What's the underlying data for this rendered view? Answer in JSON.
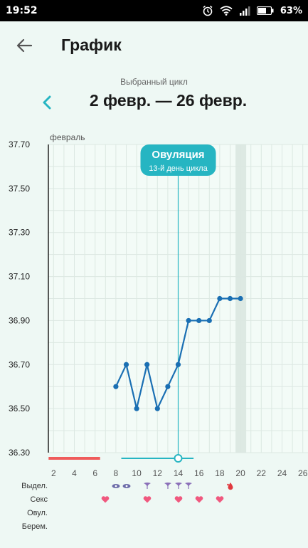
{
  "status_bar": {
    "time": "19:52",
    "battery": "63%"
  },
  "header": {
    "title": "График"
  },
  "cycle": {
    "caption": "Выбранный цикл",
    "range": "2 февр. — 26 февр."
  },
  "chart_data": {
    "type": "line",
    "month_label": "февраль",
    "y_ticks": [
      "37.70",
      "37.50",
      "37.30",
      "37.10",
      "36.90",
      "36.70",
      "36.50",
      "36.30"
    ],
    "ylim": [
      36.3,
      37.7
    ],
    "x_ticks": [
      "2",
      "4",
      "6",
      "8",
      "10",
      "12",
      "14",
      "16",
      "18",
      "20",
      "22",
      "24",
      "26"
    ],
    "xlim": [
      1.5,
      26.5
    ],
    "x": [
      8,
      9,
      10,
      11,
      12,
      13,
      14,
      15,
      16,
      17,
      18,
      19,
      20
    ],
    "values": [
      36.6,
      36.7,
      36.5,
      36.7,
      36.5,
      36.6,
      36.7,
      36.9,
      36.9,
      36.9,
      37.0,
      37.0,
      37.0
    ],
    "series_color": "#1a6fb3",
    "today_day": 20,
    "ovulation": {
      "day": 14,
      "title": "Овуляция",
      "subtitle": "13-й день цикла",
      "color": "#26b5c2"
    },
    "period_days": [
      2,
      6
    ],
    "fertile_days": [
      9,
      15
    ],
    "period_color": "#ef5b5b",
    "fertile_color": "#26b5c2"
  },
  "tracking_rows": [
    {
      "label": "Выдел.",
      "markers": [
        {
          "day": 8,
          "icon": "spotting-icon"
        },
        {
          "day": 9,
          "icon": "spotting-icon"
        },
        {
          "day": 11,
          "icon": "discharge-icon"
        },
        {
          "day": 13,
          "icon": "discharge-icon"
        },
        {
          "day": 14,
          "icon": "discharge-icon"
        },
        {
          "day": 15,
          "icon": "discharge-icon"
        },
        {
          "day": 19,
          "icon": "blood-drop-icon"
        }
      ]
    },
    {
      "label": "Секс",
      "markers": [
        {
          "day": 7,
          "icon": "heart-icon"
        },
        {
          "day": 11,
          "icon": "heart-icon"
        },
        {
          "day": 14,
          "icon": "heart-icon"
        },
        {
          "day": 16,
          "icon": "heart-icon"
        },
        {
          "day": 18,
          "icon": "heart-icon"
        }
      ]
    },
    {
      "label": "Овул.",
      "markers": []
    },
    {
      "label": "Берем.",
      "markers": []
    }
  ],
  "colors": {
    "accent": "#26b5c2",
    "line": "#1a6fb3",
    "heart": "#f0587e",
    "discharge": "#8a6fb8"
  }
}
